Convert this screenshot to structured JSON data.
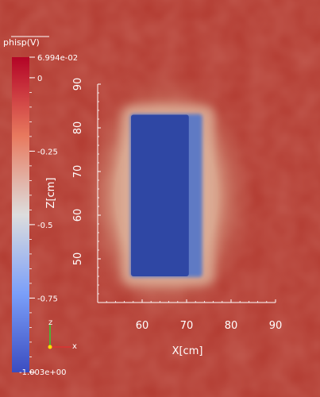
{
  "chart_data": {
    "type": "heatmap",
    "title": "phisp(V)",
    "colorbar": {
      "max_label": "6.994e-02",
      "min_label": "-1.003e+00",
      "vmin": -1.003,
      "vmax": 0.06994,
      "ticks": [
        {
          "value": 0,
          "label": "0"
        },
        {
          "value": -0.25,
          "label": "-0.25"
        },
        {
          "value": -0.5,
          "label": "-0.5"
        },
        {
          "value": -0.75,
          "label": "-0.75"
        }
      ],
      "colors": {
        "high": "#b40426",
        "mid": "#dddddd",
        "low": "#3b4cc0"
      }
    },
    "xlabel": "X[cm]",
    "ylabel": "Z[cm]",
    "xlim": [
      50,
      90
    ],
    "ylim": [
      40,
      90
    ],
    "xticks": [
      60,
      70,
      80,
      90
    ],
    "yticks": [
      50,
      60,
      70,
      80,
      90
    ],
    "background_value": 0.03,
    "region": {
      "x": [
        57.5,
        70.5
      ],
      "z": [
        46,
        83
      ],
      "value": -1.0
    },
    "orientation_axes": [
      "z",
      "x"
    ]
  },
  "colors": {
    "background": "#b23a30",
    "halo": "#d6a38b",
    "box": "#2f47a4"
  }
}
